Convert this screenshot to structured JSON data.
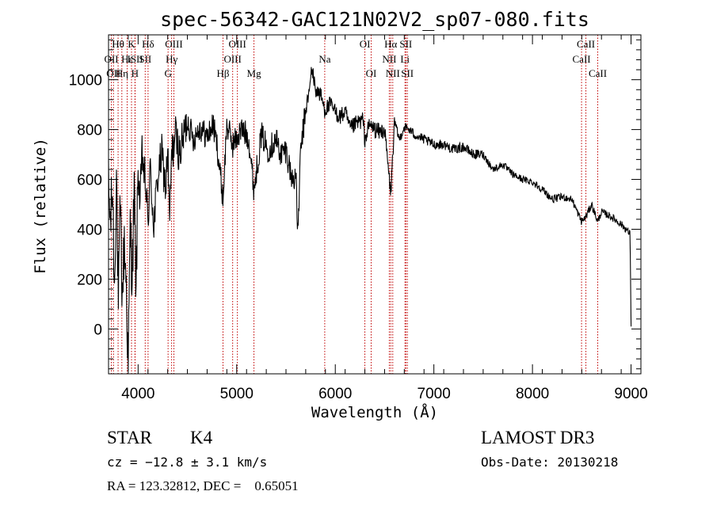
{
  "chart_data": {
    "type": "line",
    "title": "spec-56342-GAC121N02V2_sp07-080.fits",
    "xlabel": "Wavelength (Å)",
    "ylabel": "Flux (relative)",
    "xlim": [
      3700,
      9100
    ],
    "ylim": [
      -180,
      1180
    ],
    "xticks": [
      4000,
      5000,
      6000,
      7000,
      8000,
      9000
    ],
    "yticks": [
      0,
      200,
      400,
      600,
      800,
      1000
    ],
    "xtick_labels": [
      "4000",
      "5000",
      "6000",
      "7000",
      "8000",
      "9000"
    ],
    "ytick_labels": [
      "0",
      "200",
      "400",
      "600",
      "800",
      "1000"
    ],
    "spectrum_anchors": [
      [
        3700,
        560
      ],
      [
        3720,
        420
      ],
      [
        3740,
        580
      ],
      [
        3760,
        150
      ],
      [
        3780,
        640
      ],
      [
        3800,
        80
      ],
      [
        3820,
        500
      ],
      [
        3840,
        120
      ],
      [
        3860,
        350
      ],
      [
        3880,
        180
      ],
      [
        3900,
        -150
      ],
      [
        3920,
        420
      ],
      [
        3940,
        200
      ],
      [
        3960,
        550
      ],
      [
        3980,
        150
      ],
      [
        4000,
        640
      ],
      [
        4020,
        500
      ],
      [
        4040,
        700
      ],
      [
        4080,
        560
      ],
      [
        4100,
        410
      ],
      [
        4120,
        640
      ],
      [
        4160,
        420
      ],
      [
        4200,
        610
      ],
      [
        4240,
        700
      ],
      [
        4280,
        560
      ],
      [
        4300,
        720
      ],
      [
        4320,
        420
      ],
      [
        4340,
        690
      ],
      [
        4380,
        780
      ],
      [
        4420,
        700
      ],
      [
        4500,
        840
      ],
      [
        4560,
        760
      ],
      [
        4620,
        810
      ],
      [
        4700,
        770
      ],
      [
        4760,
        820
      ],
      [
        4800,
        740
      ],
      [
        4861,
        520
      ],
      [
        4900,
        820
      ],
      [
        4960,
        740
      ],
      [
        5050,
        800
      ],
      [
        5120,
        770
      ],
      [
        5175,
        560
      ],
      [
        5250,
        780
      ],
      [
        5320,
        720
      ],
      [
        5400,
        760
      ],
      [
        5450,
        700
      ],
      [
        5500,
        720
      ],
      [
        5560,
        600
      ],
      [
        5600,
        620
      ],
      [
        5620,
        380
      ],
      [
        5650,
        720
      ],
      [
        5700,
        880
      ],
      [
        5740,
        960
      ],
      [
        5760,
        1050
      ],
      [
        5800,
        960
      ],
      [
        5850,
        940
      ],
      [
        5893,
        880
      ],
      [
        5950,
        900
      ],
      [
        6000,
        870
      ],
      [
        6050,
        850
      ],
      [
        6100,
        870
      ],
      [
        6150,
        800
      ],
      [
        6200,
        820
      ],
      [
        6280,
        840
      ],
      [
        6300,
        760
      ],
      [
        6350,
        820
      ],
      [
        6400,
        800
      ],
      [
        6450,
        790
      ],
      [
        6500,
        800
      ],
      [
        6563,
        540
      ],
      [
        6600,
        830
      ],
      [
        6650,
        760
      ],
      [
        6700,
        810
      ],
      [
        6750,
        800
      ],
      [
        6800,
        780
      ],
      [
        6900,
        760
      ],
      [
        7000,
        740
      ],
      [
        7100,
        740
      ],
      [
        7200,
        720
      ],
      [
        7300,
        730
      ],
      [
        7400,
        700
      ],
      [
        7500,
        700
      ],
      [
        7600,
        640
      ],
      [
        7700,
        660
      ],
      [
        7800,
        620
      ],
      [
        7900,
        600
      ],
      [
        8000,
        590
      ],
      [
        8100,
        560
      ],
      [
        8200,
        520
      ],
      [
        8300,
        530
      ],
      [
        8400,
        520
      ],
      [
        8498,
        430
      ],
      [
        8542,
        450
      ],
      [
        8600,
        500
      ],
      [
        8662,
        430
      ],
      [
        8700,
        470
      ],
      [
        8800,
        450
      ],
      [
        8900,
        420
      ],
      [
        8950,
        400
      ],
      [
        8990,
        380
      ],
      [
        9000,
        10
      ]
    ],
    "line_markers": [
      {
        "wl": 3728,
        "row": 1,
        "label": "OII"
      },
      {
        "wl": 3750,
        "row": 2,
        "label": "OII"
      },
      {
        "wl": 3797,
        "row": 0,
        "label": "Hθ"
      },
      {
        "wl": 3835,
        "row": 2,
        "label": "Hη"
      },
      {
        "wl": 3889,
        "row": 1,
        "label": "Hε"
      },
      {
        "wl": 3933,
        "row": 0,
        "label": "K"
      },
      {
        "wl": 3968,
        "row": 2,
        "label": "H"
      },
      {
        "wl": 3970,
        "row": 1,
        "label": "ISII"
      },
      {
        "wl": 4101,
        "row": 0,
        "label": "Hδ"
      },
      {
        "wl": 4072,
        "row": 1,
        "label": "SII"
      },
      {
        "wl": 4304,
        "row": 2,
        "label": "G"
      },
      {
        "wl": 4340,
        "row": 1,
        "label": "Hγ"
      },
      {
        "wl": 4363,
        "row": 0,
        "label": "OIII"
      },
      {
        "wl": 4861,
        "row": 2,
        "label": "Hβ"
      },
      {
        "wl": 4959,
        "row": 1,
        "label": "OIII"
      },
      {
        "wl": 5007,
        "row": 0,
        "label": "OIII"
      },
      {
        "wl": 5175,
        "row": 2,
        "label": "Mg"
      },
      {
        "wl": 5893,
        "row": 1,
        "label": "Na"
      },
      {
        "wl": 6300,
        "row": 0,
        "label": "OI"
      },
      {
        "wl": 6364,
        "row": 2,
        "label": "OI"
      },
      {
        "wl": 6548,
        "row": 1,
        "label": "NII"
      },
      {
        "wl": 6563,
        "row": 0,
        "label": "Hα"
      },
      {
        "wl": 6583,
        "row": 2,
        "label": "NII"
      },
      {
        "wl": 6707,
        "row": 1,
        "label": "Li"
      },
      {
        "wl": 6716,
        "row": 0,
        "label": "SII"
      },
      {
        "wl": 6731,
        "row": 2,
        "label": "SII"
      },
      {
        "wl": 8498,
        "row": 1,
        "label": "CaII"
      },
      {
        "wl": 8542,
        "row": 0,
        "label": "CaII"
      },
      {
        "wl": 8662,
        "row": 2,
        "label": "CaII"
      }
    ]
  },
  "info": {
    "class": "STAR",
    "subclass": "K4",
    "cz": "cz = −12.8 ± 3.1 km/s",
    "coords": "RA = 123.32812, DEC =    0.65051",
    "survey": "LAMOST DR3",
    "obs_date": "Obs-Date: 20130218"
  }
}
